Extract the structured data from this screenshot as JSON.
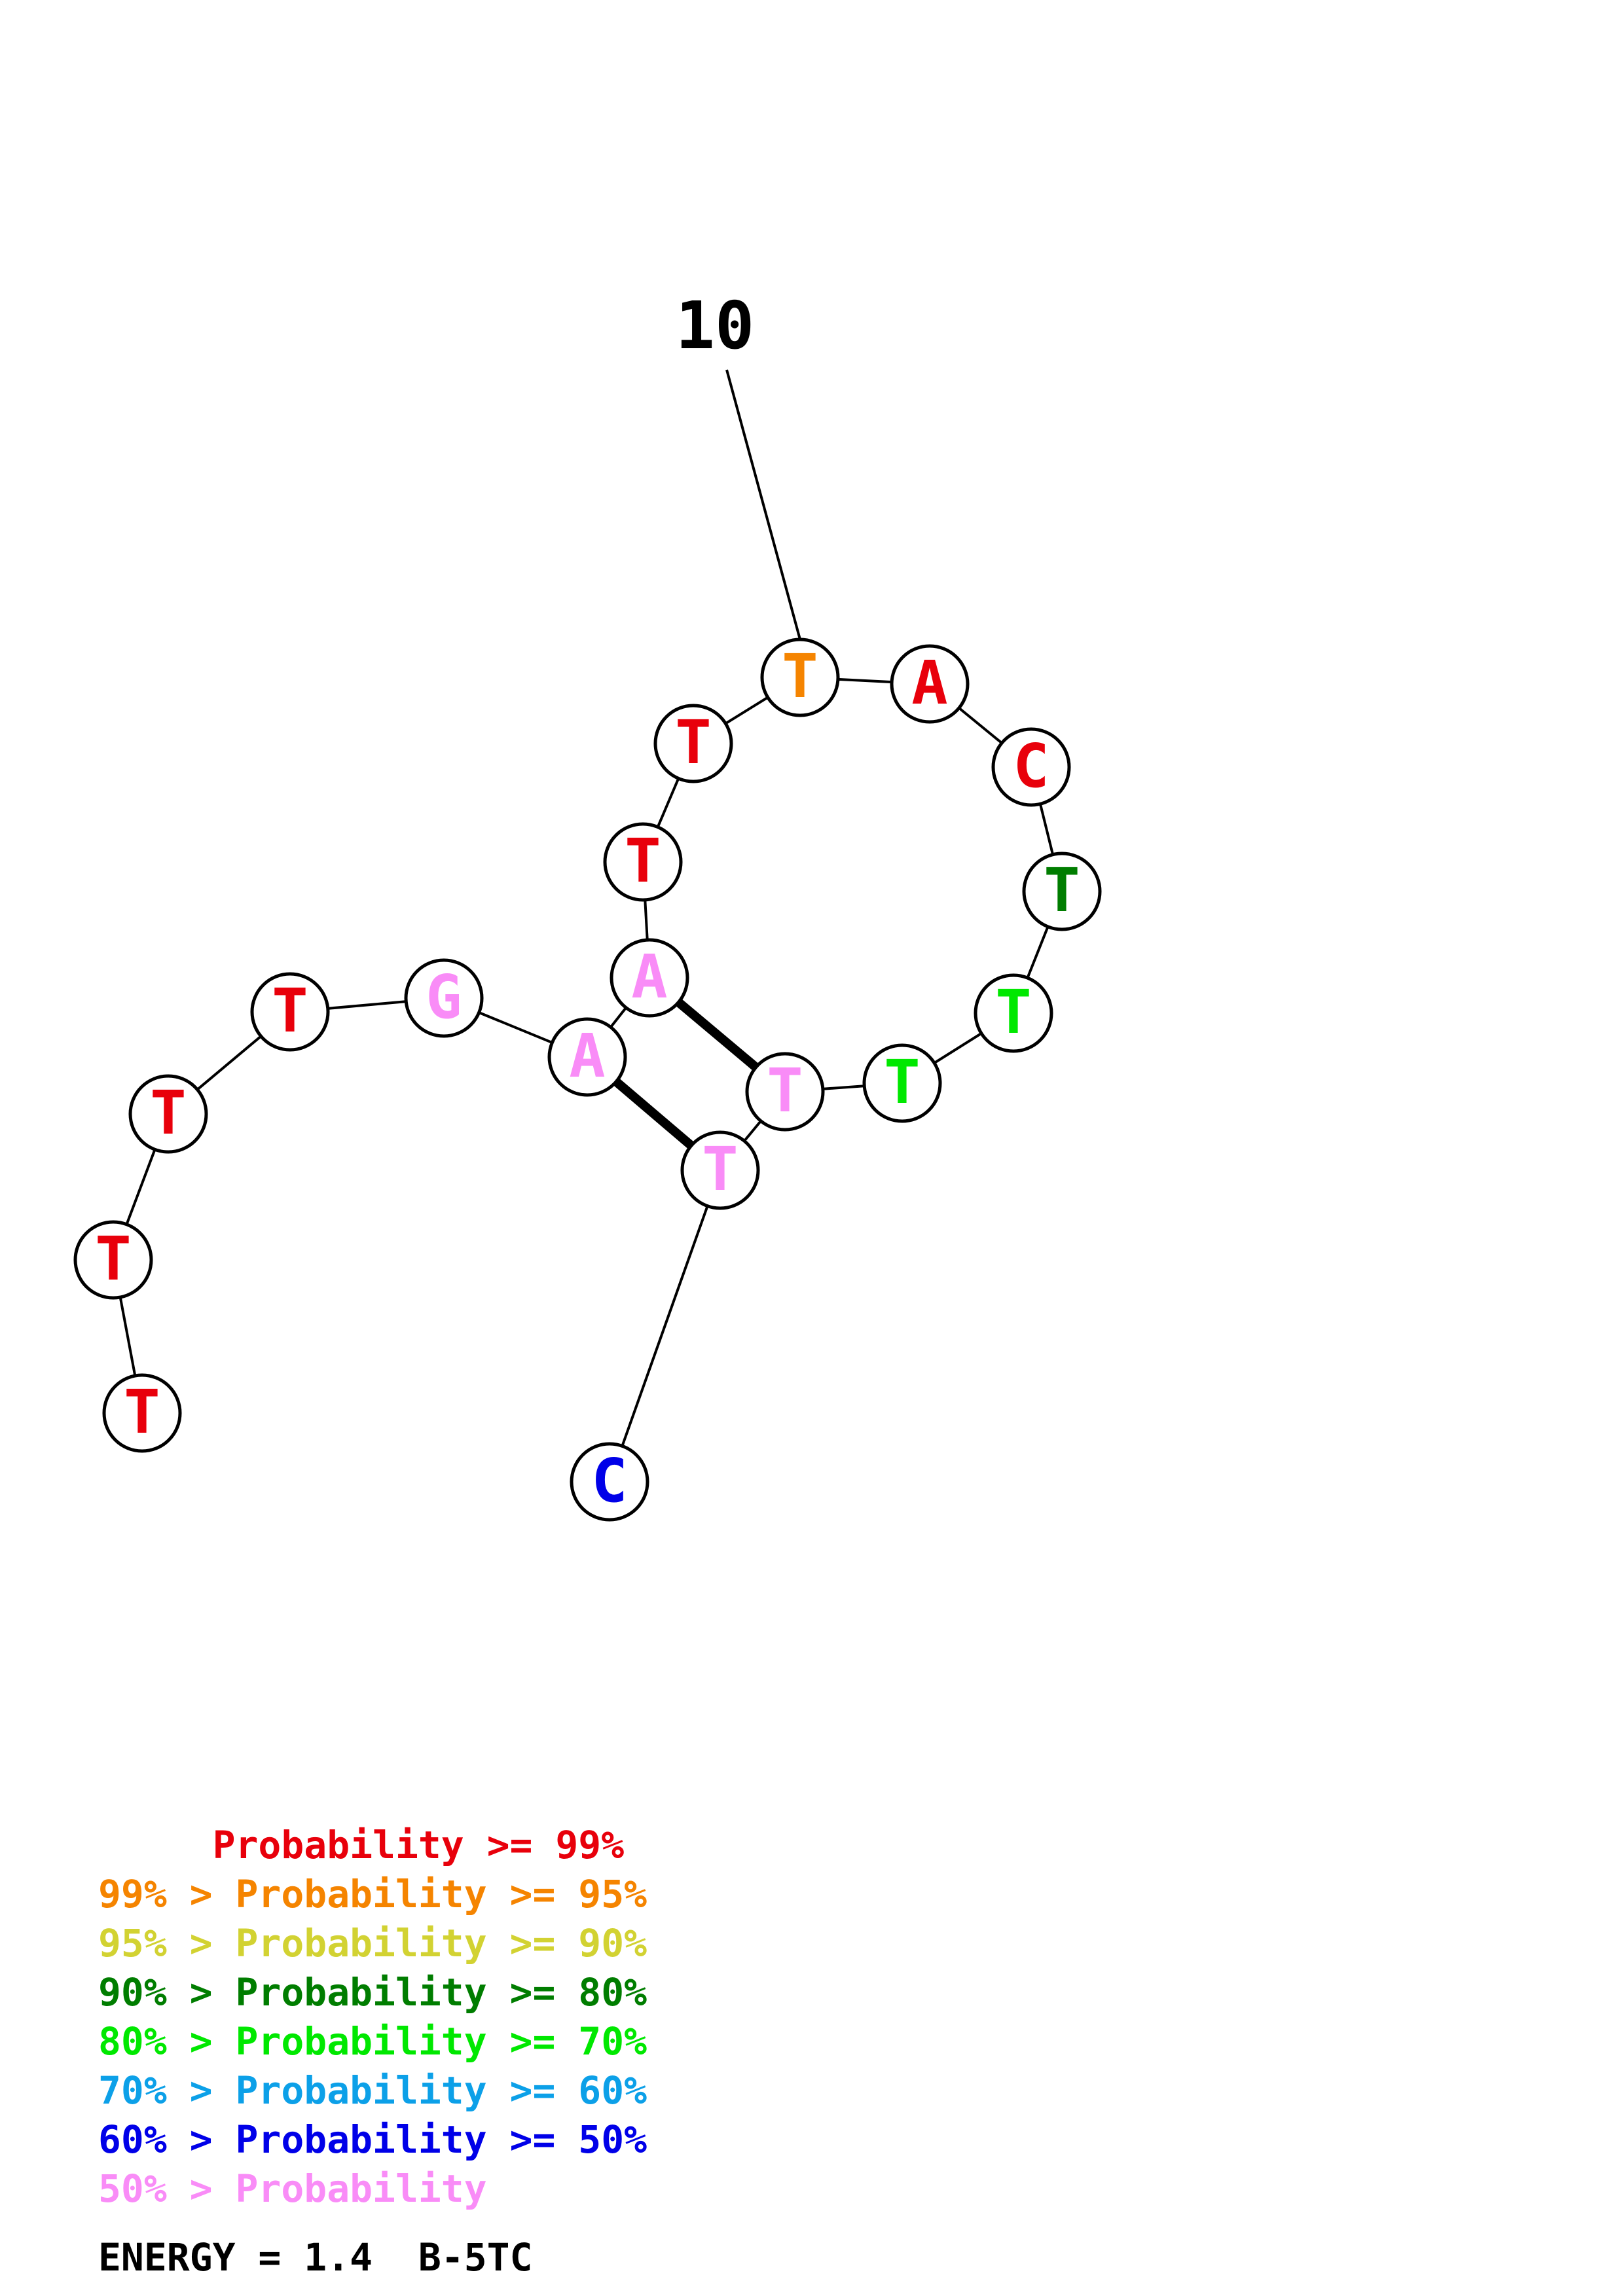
{
  "diagram": {
    "position_label": "10",
    "nucleotides": [
      {
        "base": "T",
        "color": "#e8000b"
      },
      {
        "base": "T",
        "color": "#e8000b"
      },
      {
        "base": "T",
        "color": "#e8000b"
      },
      {
        "base": "T",
        "color": "#e8000b"
      },
      {
        "base": "G",
        "color": "#f98cf7"
      },
      {
        "base": "A",
        "color": "#f98cf7"
      },
      {
        "base": "A",
        "color": "#f98cf7"
      },
      {
        "base": "T",
        "color": "#e8000b"
      },
      {
        "base": "T",
        "color": "#e8000b"
      },
      {
        "base": "T",
        "color": "#f58400"
      },
      {
        "base": "A",
        "color": "#e8000b"
      },
      {
        "base": "C",
        "color": "#e8000b"
      },
      {
        "base": "T",
        "color": "#007d00"
      },
      {
        "base": "T",
        "color": "#00e800"
      },
      {
        "base": "T",
        "color": "#00e800"
      },
      {
        "base": "T",
        "color": "#f98cf7"
      },
      {
        "base": "T",
        "color": "#f98cf7"
      },
      {
        "base": "C",
        "color": "#0000e8"
      }
    ],
    "base_pairs": [
      [
        6,
        15
      ],
      [
        5,
        16
      ]
    ]
  },
  "legend": [
    {
      "prefix": "     ",
      "text": "Probability >= 99%",
      "color": "#e8000b"
    },
    {
      "prefix": "",
      "text": "99% > Probability >= 95%",
      "color": "#f58400"
    },
    {
      "prefix": "",
      "text": "95% > Probability >= 90%",
      "color": "#d2d232"
    },
    {
      "prefix": "",
      "text": "90% > Probability >= 80%",
      "color": "#007d00"
    },
    {
      "prefix": "",
      "text": "80% > Probability >= 70%",
      "color": "#00e800"
    },
    {
      "prefix": "",
      "text": "70% > Probability >= 60%",
      "color": "#0ca0e8"
    },
    {
      "prefix": "",
      "text": "60% > Probability >= 50%",
      "color": "#0000e8"
    },
    {
      "prefix": "",
      "text": "50% > Probability",
      "color": "#f98cf7"
    }
  ],
  "footer": {
    "energy": "ENERGY = 1.4  B-5TC"
  }
}
